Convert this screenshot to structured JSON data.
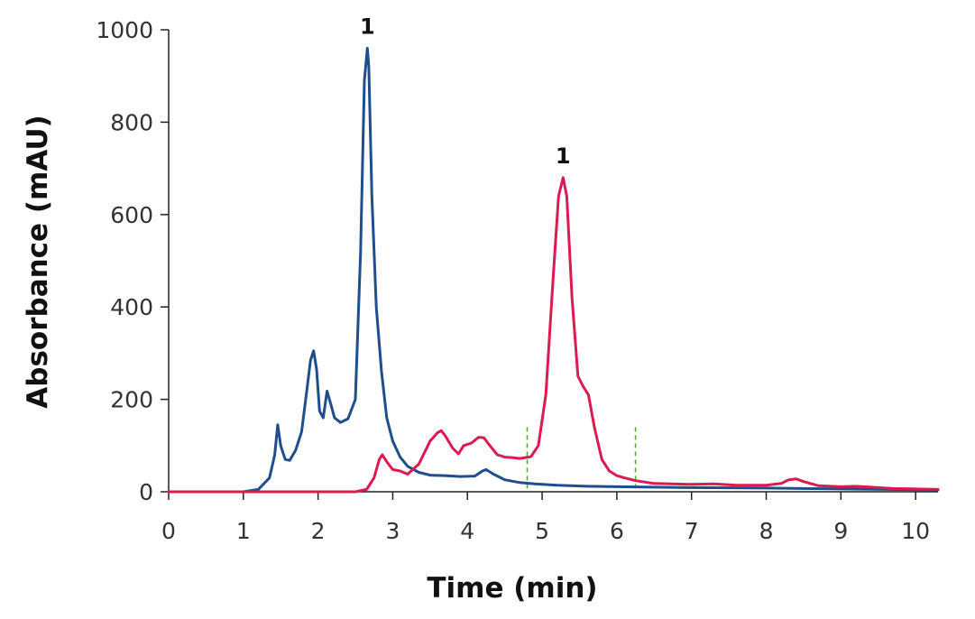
{
  "chart_data": {
    "type": "line",
    "xlabel": "Time (min)",
    "ylabel": "Absorbance (mAU)",
    "xlim": [
      0,
      10.3
    ],
    "ylim": [
      0,
      1000
    ],
    "x_ticks": [
      0,
      1,
      2,
      3,
      4,
      5,
      6,
      7,
      8,
      9,
      10
    ],
    "y_ticks": [
      0,
      200,
      400,
      600,
      800,
      1000
    ],
    "grid": false,
    "legend": "none",
    "series": [
      {
        "color": "#1f4e8c",
        "x": [
          0.0,
          1.0,
          1.2,
          1.35,
          1.42,
          1.46,
          1.5,
          1.56,
          1.62,
          1.7,
          1.78,
          1.85,
          1.9,
          1.94,
          1.98,
          2.02,
          2.07,
          2.12,
          2.17,
          2.22,
          2.3,
          2.4,
          2.5,
          2.57,
          2.62,
          2.66,
          2.68,
          2.72,
          2.78,
          2.85,
          2.92,
          3.0,
          3.1,
          3.2,
          3.35,
          3.5,
          3.7,
          3.9,
          4.1,
          4.2,
          4.25,
          4.35,
          4.5,
          4.7,
          4.9,
          5.2,
          5.6,
          6.0,
          6.5,
          7.0,
          8.0,
          9.0,
          10.3
        ],
        "y": [
          0,
          0,
          5,
          30,
          80,
          145,
          100,
          70,
          68,
          90,
          130,
          220,
          285,
          305,
          265,
          175,
          160,
          218,
          190,
          160,
          150,
          158,
          200,
          520,
          890,
          960,
          920,
          640,
          400,
          260,
          160,
          110,
          75,
          55,
          42,
          36,
          35,
          33,
          34,
          45,
          48,
          38,
          26,
          20,
          17,
          14,
          12,
          11,
          10,
          9,
          8,
          6,
          4
        ]
      },
      {
        "color": "#dc1a50",
        "x": [
          0.0,
          2.5,
          2.65,
          2.75,
          2.82,
          2.86,
          2.92,
          3.0,
          3.1,
          3.2,
          3.35,
          3.5,
          3.6,
          3.65,
          3.7,
          3.8,
          3.88,
          3.95,
          4.05,
          4.15,
          4.22,
          4.3,
          4.4,
          4.5,
          4.6,
          4.7,
          4.85,
          4.95,
          5.05,
          5.15,
          5.22,
          5.28,
          5.33,
          5.4,
          5.48,
          5.55,
          5.62,
          5.7,
          5.8,
          5.9,
          6.0,
          6.1,
          6.25,
          6.5,
          7.0,
          7.3,
          7.6,
          8.0,
          8.2,
          8.3,
          8.4,
          8.5,
          8.7,
          9.0,
          9.2,
          9.4,
          9.7,
          10.3
        ],
        "y": [
          0,
          0,
          5,
          30,
          70,
          80,
          65,
          48,
          45,
          38,
          60,
          110,
          128,
          132,
          122,
          95,
          82,
          100,
          105,
          118,
          117,
          100,
          80,
          75,
          74,
          72,
          76,
          100,
          210,
          470,
          640,
          680,
          640,
          420,
          250,
          228,
          210,
          140,
          70,
          45,
          35,
          30,
          24,
          18,
          16,
          17,
          14,
          14,
          18,
          26,
          28,
          22,
          13,
          11,
          12,
          10,
          7,
          5
        ]
      }
    ],
    "annotations": [
      {
        "text": "1",
        "x": 2.66,
        "y": 960
      },
      {
        "text": "1",
        "x": 5.28,
        "y": 680
      }
    ],
    "markers": {
      "color": "#5aa832",
      "x": [
        4.8,
        6.25
      ],
      "y_top": 140
    }
  }
}
